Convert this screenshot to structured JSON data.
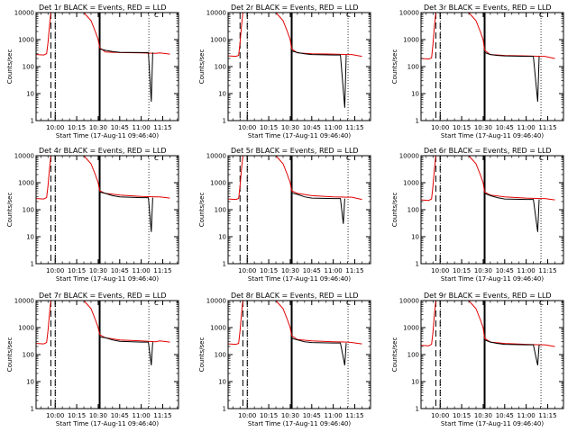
{
  "chart_data": {
    "type": "line",
    "layout": "3x3 grid",
    "y_scale": "log",
    "ylim": [
      1,
      10000
    ],
    "ylabel": "Counts/sec",
    "xlabel": "Start Time (17-Aug-11 09:46:40)",
    "y_ticks": [
      "1",
      "10",
      "100",
      "1000",
      "10000"
    ],
    "x_ticks": [
      "10:00",
      "10:15",
      "10:30",
      "10:45",
      "11:00",
      "11:15"
    ],
    "grid": false,
    "legend": "none",
    "colors": {
      "events": "#000000",
      "lld": "#e00000"
    },
    "panels": [
      {
        "title": "Det 1r BLACK = Events, RED = LLD",
        "marker": "C",
        "vlines": {
          "dashed": [
            "09:57",
            "10:00"
          ],
          "solid": [
            "10:31"
          ],
          "dotted": [
            "10:00",
            "11:05"
          ]
        },
        "series": [
          {
            "name": "LLD",
            "x": [
              "09:47",
              "09:52",
              "09:54",
              "09:55",
              "09:56",
              "09:57",
              "09:59",
              "10:03",
              "10:08",
              "10:13",
              "10:20",
              "10:25",
              "10:28",
              "10:30",
              "10:31",
              "10:35",
              "10:45",
              "11:00",
              "11:10",
              "11:13",
              "11:20"
            ],
            "values": [
              280,
              270,
              300,
              800,
              3000,
              10000,
              10000,
              10000,
              10000,
              10000,
              10000,
              5000,
              2000,
              1000,
              500,
              350,
              330,
              320,
              310,
              320,
              290
            ]
          },
          {
            "name": "Events",
            "x": [
              "10:31",
              "10:35",
              "10:40",
              "10:45",
              "11:00",
              "11:05",
              "11:07",
              "11:08"
            ],
            "values": [
              450,
              400,
              360,
              340,
              330,
              330,
              5,
              330
            ]
          }
        ]
      },
      {
        "title": "Det 2r BLACK = Events, RED = LLD",
        "marker": "C",
        "vlines": {
          "dashed": [
            "09:55",
            "10:00"
          ],
          "solid": [
            "10:31"
          ],
          "dotted": [
            "10:00",
            "11:10"
          ]
        },
        "series": [
          {
            "name": "LLD",
            "x": [
              "09:47",
              "09:52",
              "09:54",
              "09:55",
              "09:56",
              "09:57",
              "09:59",
              "10:03",
              "10:08",
              "10:13",
              "10:20",
              "10:25",
              "10:28",
              "10:30",
              "10:31",
              "10:35",
              "10:45",
              "11:00",
              "11:10",
              "11:13",
              "11:20"
            ],
            "values": [
              250,
              240,
              260,
              800,
              3000,
              10000,
              10000,
              10000,
              10000,
              10000,
              10000,
              5000,
              2000,
              1000,
              450,
              320,
              300,
              290,
              280,
              280,
              240
            ]
          },
          {
            "name": "Events",
            "x": [
              "10:31",
              "10:35",
              "10:40",
              "10:45",
              "11:00",
              "11:05",
              "11:08",
              "11:09"
            ],
            "values": [
              380,
              330,
              300,
              280,
              270,
              270,
              3,
              270
            ]
          }
        ]
      },
      {
        "title": "Det 3r BLACK = Events, RED = LLD",
        "marker": "C",
        "vlines": {
          "dashed": [
            "09:57",
            "10:00"
          ],
          "solid": [
            "10:31"
          ],
          "dotted": [
            "10:00",
            "11:10"
          ]
        },
        "series": [
          {
            "name": "LLD",
            "x": [
              "09:47",
              "09:52",
              "09:54",
              "09:55",
              "09:56",
              "09:57",
              "09:59",
              "10:03",
              "10:08",
              "10:13",
              "10:20",
              "10:25",
              "10:28",
              "10:30",
              "10:31",
              "10:35",
              "10:45",
              "11:00",
              "11:10",
              "11:13",
              "11:20"
            ],
            "values": [
              200,
              190,
              210,
              700,
              3000,
              10000,
              10000,
              10000,
              10000,
              10000,
              10000,
              5000,
              2000,
              1000,
              400,
              280,
              260,
              250,
              240,
              240,
              200
            ]
          },
          {
            "name": "Events",
            "x": [
              "10:31",
              "10:35",
              "10:40",
              "10:45",
              "11:00",
              "11:05",
              "11:08",
              "11:09"
            ],
            "values": [
              330,
              280,
              260,
              250,
              240,
              240,
              5,
              240
            ]
          }
        ]
      },
      {
        "title": "Det 4r BLACK = Events, RED = LLD",
        "marker": "C",
        "vlines": {
          "dashed": [
            "09:57",
            "10:00"
          ],
          "solid": [
            "10:31"
          ],
          "dotted": [
            "10:00",
            "11:05"
          ]
        },
        "series": [
          {
            "name": "LLD",
            "x": [
              "09:47",
              "09:52",
              "09:54",
              "09:55",
              "09:56",
              "09:57",
              "09:59",
              "10:03",
              "10:08",
              "10:13",
              "10:20",
              "10:25",
              "10:28",
              "10:30",
              "10:31",
              "10:35",
              "10:45",
              "11:00",
              "11:10",
              "11:13",
              "11:20"
            ],
            "values": [
              260,
              250,
              280,
              800,
              3000,
              10000,
              10000,
              10000,
              10000,
              10000,
              10000,
              5000,
              2000,
              1000,
              500,
              400,
              350,
              310,
              300,
              300,
              270
            ]
          },
          {
            "name": "Events",
            "x": [
              "10:31",
              "10:35",
              "10:40",
              "10:45",
              "11:00",
              "11:05",
              "11:07",
              "11:08"
            ],
            "values": [
              450,
              400,
              330,
              300,
              280,
              280,
              15,
              280
            ]
          }
        ]
      },
      {
        "title": "Det 5r BLACK = Events, RED = LLD",
        "marker": "C",
        "vlines": {
          "dashed": [
            "09:55",
            "10:00"
          ],
          "solid": [
            "10:31"
          ],
          "dotted": [
            "10:00",
            "11:10"
          ]
        },
        "series": [
          {
            "name": "LLD",
            "x": [
              "09:47",
              "09:52",
              "09:54",
              "09:55",
              "09:56",
              "09:57",
              "09:59",
              "10:03",
              "10:08",
              "10:13",
              "10:20",
              "10:25",
              "10:28",
              "10:30",
              "10:31",
              "10:35",
              "10:45",
              "11:00",
              "11:10",
              "11:13",
              "11:20"
            ],
            "values": [
              250,
              240,
              260,
              800,
              3000,
              10000,
              10000,
              10000,
              10000,
              10000,
              10000,
              5000,
              2000,
              1000,
              500,
              400,
              330,
              300,
              290,
              290,
              240
            ]
          },
          {
            "name": "Events",
            "x": [
              "10:31",
              "10:35",
              "10:40",
              "10:45",
              "11:00",
              "11:05",
              "11:07",
              "11:08"
            ],
            "values": [
              420,
              370,
              300,
              270,
              260,
              260,
              30,
              260
            ]
          }
        ]
      },
      {
        "title": "Det 6r BLACK = Events, RED = LLD",
        "marker": "C",
        "vlines": {
          "dashed": [
            "09:57",
            "10:00"
          ],
          "solid": [
            "10:31"
          ],
          "dotted": [
            "10:00",
            "11:10"
          ]
        },
        "series": [
          {
            "name": "LLD",
            "x": [
              "09:47",
              "09:52",
              "09:54",
              "09:55",
              "09:56",
              "09:57",
              "09:59",
              "10:03",
              "10:08",
              "10:13",
              "10:20",
              "10:25",
              "10:28",
              "10:30",
              "10:31",
              "10:35",
              "10:45",
              "11:00",
              "11:10",
              "11:13",
              "11:20"
            ],
            "values": [
              230,
              220,
              250,
              800,
              3000,
              10000,
              10000,
              10000,
              10000,
              10000,
              10000,
              5000,
              2000,
              1000,
              450,
              350,
              300,
              270,
              260,
              260,
              230
            ]
          },
          {
            "name": "Events",
            "x": [
              "10:31",
              "10:35",
              "10:40",
              "10:45",
              "11:00",
              "11:05",
              "11:08",
              "11:09"
            ],
            "values": [
              400,
              330,
              280,
              250,
              240,
              240,
              15,
              240
            ]
          }
        ]
      },
      {
        "title": "Det 7r BLACK = Events, RED = LLD",
        "marker": "C",
        "vlines": {
          "dashed": [
            "09:57",
            "10:00"
          ],
          "solid": [
            "10:31"
          ],
          "dotted": [
            "10:00",
            "11:05"
          ]
        },
        "series": [
          {
            "name": "LLD",
            "x": [
              "09:47",
              "09:52",
              "09:54",
              "09:55",
              "09:56",
              "09:57",
              "09:59",
              "10:03",
              "10:08",
              "10:13",
              "10:20",
              "10:25",
              "10:28",
              "10:30",
              "10:31",
              "10:35",
              "10:45",
              "11:00",
              "11:10",
              "11:13",
              "11:20"
            ],
            "values": [
              260,
              250,
              280,
              800,
              3000,
              10000,
              10000,
              10000,
              10000,
              10000,
              10000,
              5000,
              2000,
              1000,
              550,
              420,
              350,
              320,
              300,
              320,
              290
            ]
          },
          {
            "name": "Events",
            "x": [
              "10:31",
              "10:35",
              "10:40",
              "10:45",
              "11:00",
              "11:05",
              "11:07",
              "11:08"
            ],
            "values": [
              450,
              420,
              350,
              310,
              290,
              290,
              40,
              290
            ]
          }
        ]
      },
      {
        "title": "Det 8r BLACK = Events, RED = LLD",
        "marker": "C",
        "vlines": {
          "dashed": [
            "09:57",
            "10:00"
          ],
          "solid": [
            "10:31"
          ],
          "dotted": [
            "10:00",
            "11:10"
          ]
        },
        "series": [
          {
            "name": "LLD",
            "x": [
              "09:47",
              "09:52",
              "09:54",
              "09:55",
              "09:56",
              "09:57",
              "09:59",
              "10:03",
              "10:08",
              "10:13",
              "10:20",
              "10:25",
              "10:28",
              "10:30",
              "10:31",
              "10:35",
              "10:45",
              "11:00",
              "11:10",
              "11:13",
              "11:20"
            ],
            "values": [
              250,
              240,
              260,
              800,
              3000,
              10000,
              10000,
              10000,
              10000,
              10000,
              10000,
              5000,
              2000,
              1000,
              500,
              360,
              320,
              300,
              290,
              280,
              250
            ]
          },
          {
            "name": "Events",
            "x": [
              "10:31",
              "10:35",
              "10:40",
              "10:45",
              "11:00",
              "11:05",
              "11:08",
              "11:09"
            ],
            "values": [
              400,
              350,
              300,
              280,
              270,
              270,
              40,
              270
            ]
          }
        ]
      },
      {
        "title": "Det 9r BLACK = Events, RED = LLD",
        "marker": "C",
        "vlines": {
          "dashed": [
            "09:57",
            "10:00"
          ],
          "solid": [
            "10:31"
          ],
          "dotted": [
            "10:00",
            "11:10"
          ]
        },
        "series": [
          {
            "name": "LLD",
            "x": [
              "09:47",
              "09:52",
              "09:54",
              "09:55",
              "09:56",
              "09:57",
              "09:59",
              "10:03",
              "10:08",
              "10:13",
              "10:20",
              "10:25",
              "10:28",
              "10:30",
              "10:31",
              "10:35",
              "10:45",
              "11:00",
              "11:10",
              "11:13",
              "11:20"
            ],
            "values": [
              220,
              210,
              240,
              700,
              3000,
              10000,
              10000,
              10000,
              10000,
              10000,
              10000,
              5000,
              2000,
              1000,
              400,
              290,
              260,
              240,
              230,
              230,
              200
            ]
          },
          {
            "name": "Events",
            "x": [
              "10:31",
              "10:35",
              "10:40",
              "10:45",
              "11:00",
              "11:05",
              "11:08",
              "11:09"
            ],
            "values": [
              350,
              290,
              260,
              240,
              230,
              230,
              40,
              230
            ]
          }
        ]
      }
    ]
  }
}
